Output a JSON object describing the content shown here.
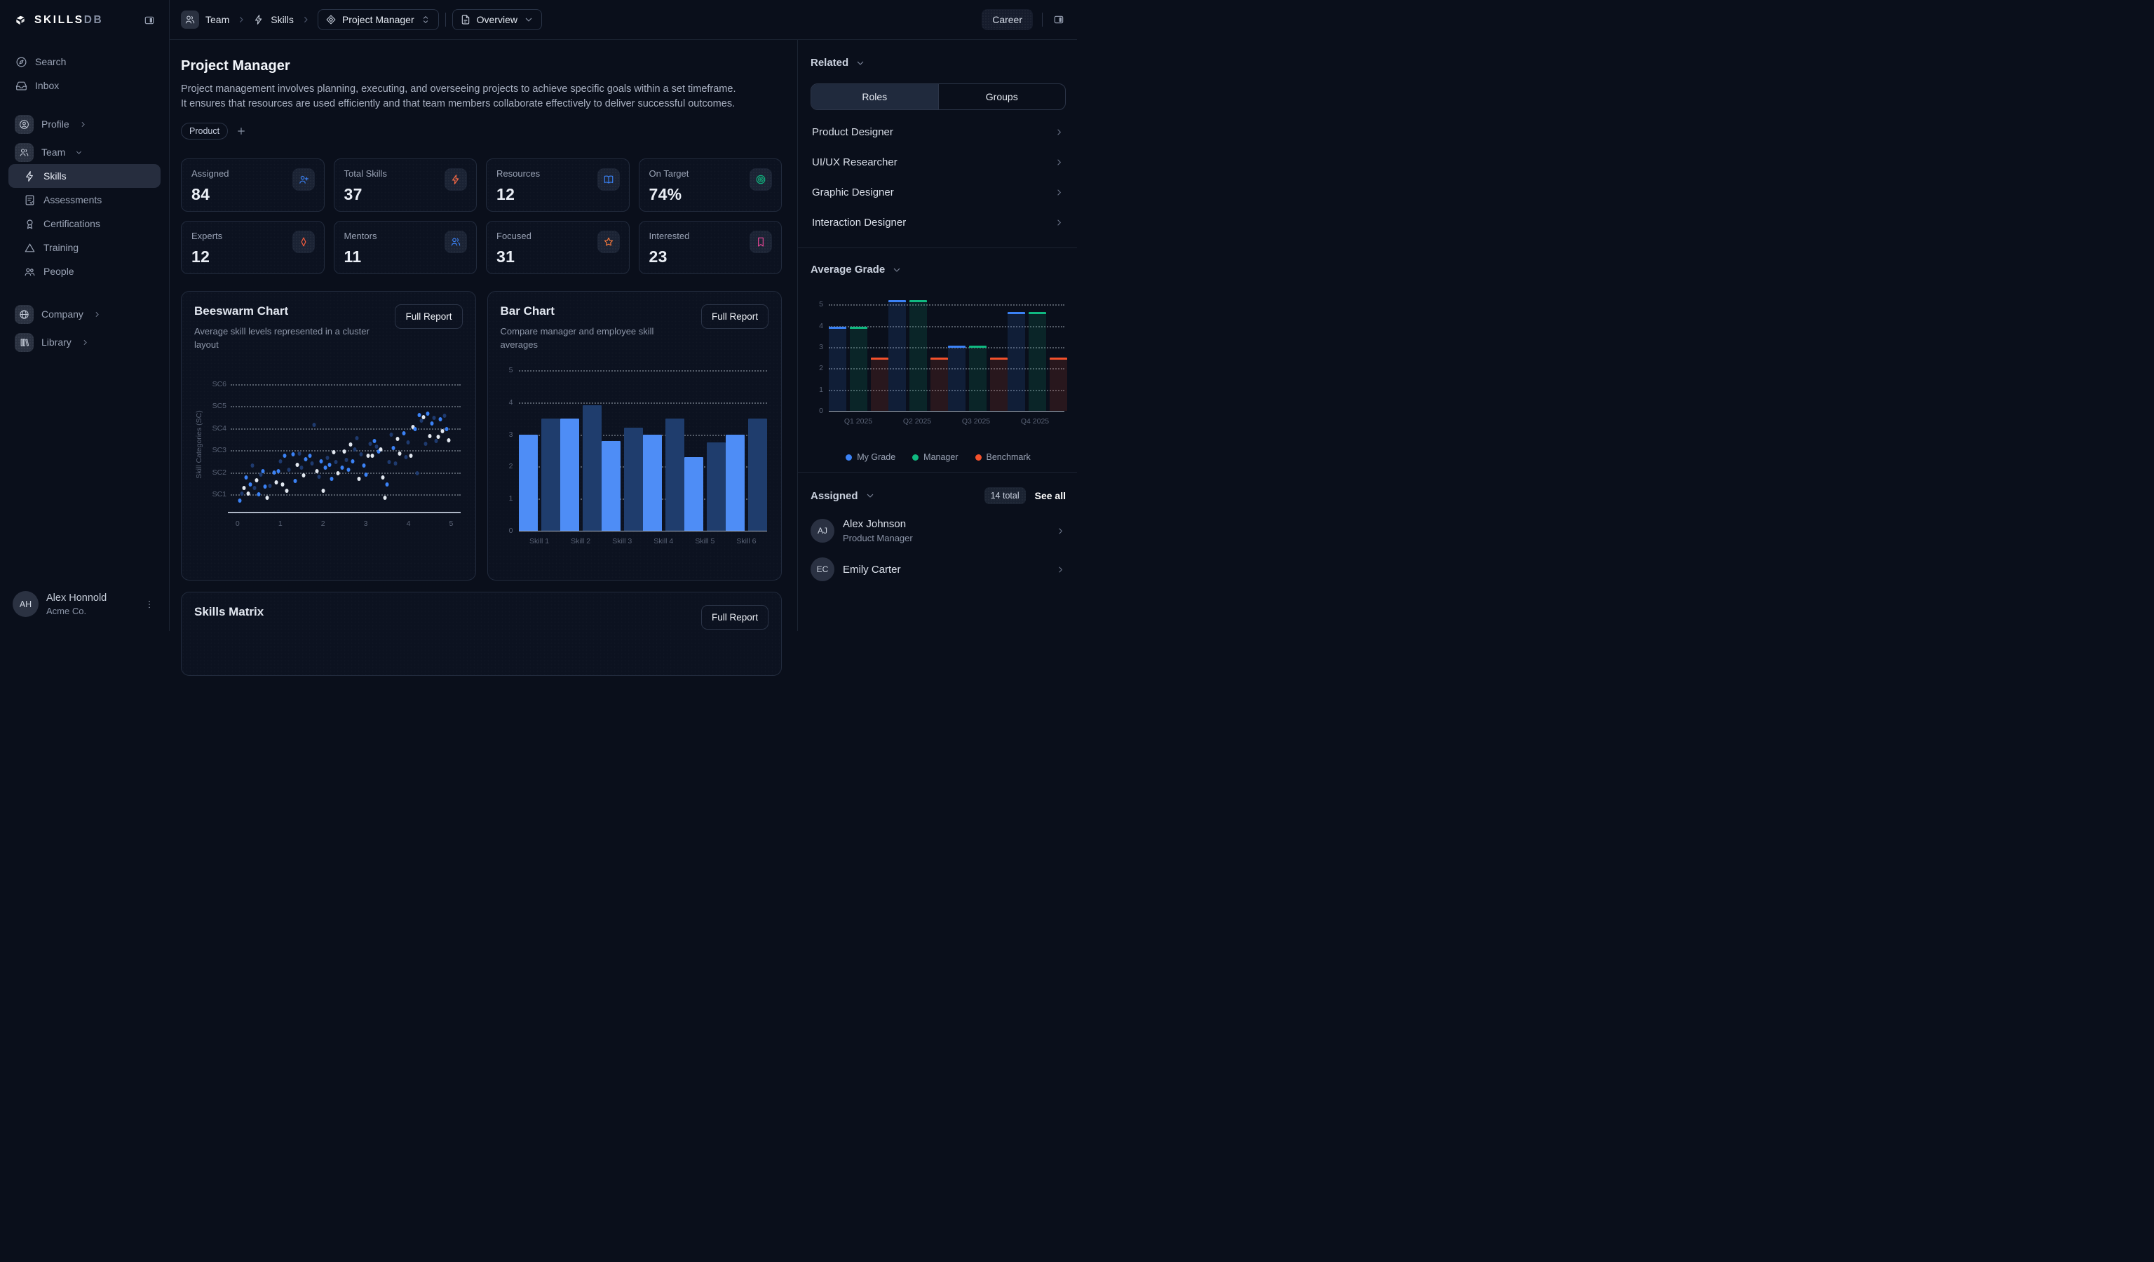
{
  "app": {
    "brand": "SKILLS",
    "brand_suffix": "DB"
  },
  "topbar": {
    "breadcrumb": [
      {
        "label": "Team",
        "icon": "team"
      },
      {
        "label": "Skills",
        "icon": "skills"
      }
    ],
    "role_select": {
      "label": "Project Manager",
      "icon": "role-diamond"
    },
    "view_select": {
      "label": "Overview",
      "icon": "file"
    },
    "career_label": "Career"
  },
  "sidebar": {
    "primary": [
      {
        "label": "Search",
        "icon": "search"
      },
      {
        "label": "Inbox",
        "icon": "inbox"
      }
    ],
    "groups": [
      {
        "label": "Profile",
        "icon": "profile",
        "chevron": "chevron-right",
        "children": []
      },
      {
        "label": "Team",
        "icon": "team",
        "chevron": "chevron-down",
        "children": [
          {
            "label": "Skills",
            "icon": "skills",
            "active": true
          },
          {
            "label": "Assessments",
            "icon": "assessments"
          },
          {
            "label": "Certifications",
            "icon": "certifications"
          },
          {
            "label": "Training",
            "icon": "training"
          },
          {
            "label": "People",
            "icon": "people"
          }
        ]
      }
    ],
    "secondary": [
      {
        "label": "Company",
        "icon": "company",
        "chevron": "chevron-right"
      },
      {
        "label": "Library",
        "icon": "library",
        "chevron": "chevron-right"
      }
    ],
    "user": {
      "initials": "AH",
      "name": "Alex Honnold",
      "org": "Acme Co."
    }
  },
  "page": {
    "title": "Project Manager",
    "description": "Project management involves planning, executing, and overseeing projects to achieve specific goals within a set timeframe. It ensures that resources are used efficiently and that team members collaborate effectively to deliver successful outcomes.",
    "tag": "Product"
  },
  "stats": [
    {
      "label": "Assigned",
      "value": "84",
      "icon": "user-plus",
      "color": "#3b82f6"
    },
    {
      "label": "Total Skills",
      "value": "37",
      "icon": "bolt",
      "color": "#fb6a45"
    },
    {
      "label": "Resources",
      "value": "12",
      "icon": "book-open",
      "color": "#3b82f6"
    },
    {
      "label": "On Target",
      "value": "74%",
      "icon": "target",
      "color": "#10b981"
    },
    {
      "label": "Experts",
      "value": "12",
      "icon": "diamond",
      "color": "#fb5d3d"
    },
    {
      "label": "Mentors",
      "value": "11",
      "icon": "team",
      "color": "#3b82f6"
    },
    {
      "label": "Focused",
      "value": "31",
      "icon": "star",
      "color": "#fb7a3c"
    },
    {
      "label": "Interested",
      "value": "23",
      "icon": "bookmark",
      "color": "#ec4899"
    }
  ],
  "cards": {
    "beeswarm": {
      "title": "Beeswarm Chart",
      "subtitle": "Average skill levels represented in a cluster layout",
      "button": "Full Report"
    },
    "bar": {
      "title": "Bar Chart",
      "subtitle": "Compare manager and employee skill averages",
      "button": "Full Report"
    },
    "matrix": {
      "title": "Skills Matrix",
      "button": "Full Report"
    }
  },
  "right_panel": {
    "related_label": "Related",
    "tabs": [
      "Roles",
      "Groups"
    ],
    "active_tab": "Roles",
    "roles": [
      "Product Designer",
      "UI/UX Researcher",
      "Graphic Designer",
      "Interaction Designer"
    ],
    "average_grade_label": "Average Grade",
    "assigned": {
      "label": "Assigned",
      "total_badge": "14 total",
      "see_all": "See all",
      "people": [
        {
          "initials": "AJ",
          "name": "Alex Johnson",
          "role": "Product Manager"
        },
        {
          "initials": "EC",
          "name": "Emily Carter",
          "role": ""
        }
      ]
    }
  },
  "chart_data": [
    {
      "id": "beeswarm",
      "type": "scatter",
      "title": "Beeswarm Chart",
      "xlabel": "",
      "ylabel": "Skill Categories (SC)",
      "x_ticks": [
        0,
        1,
        2,
        3,
        4,
        5
      ],
      "y_categories": [
        "SC1",
        "SC2",
        "SC3",
        "SC4",
        "SC5",
        "SC6"
      ],
      "xlim": [
        0,
        5
      ],
      "ylim": [
        0.15,
        6.75
      ],
      "grid": "dotted-horizontal",
      "point_colors": [
        "#3b82f6",
        "#1e3a6e",
        "#e2e8f0"
      ],
      "points": [
        [
          0.05,
          0.72,
          0
        ],
        [
          0.1,
          1.05,
          1
        ],
        [
          0.15,
          1.3,
          2
        ],
        [
          0.2,
          1.75,
          0
        ],
        [
          0.25,
          1.05,
          2
        ],
        [
          0.3,
          1.45,
          0
        ],
        [
          0.35,
          2.3,
          1
        ],
        [
          0.4,
          1.3,
          1
        ],
        [
          0.45,
          1.65,
          2
        ],
        [
          0.5,
          1.0,
          0
        ],
        [
          0.55,
          1.9,
          1
        ],
        [
          0.6,
          2.05,
          0
        ],
        [
          0.65,
          1.35,
          0
        ],
        [
          0.7,
          0.85,
          2
        ],
        [
          0.75,
          1.4,
          1
        ],
        [
          0.85,
          2.0,
          0
        ],
        [
          0.9,
          1.55,
          2
        ],
        [
          0.95,
          2.05,
          0
        ],
        [
          1.0,
          2.5,
          1
        ],
        [
          1.05,
          1.45,
          2
        ],
        [
          1.1,
          2.75,
          0
        ],
        [
          1.15,
          1.15,
          2
        ],
        [
          1.2,
          2.1,
          1
        ],
        [
          1.3,
          2.8,
          0
        ],
        [
          1.35,
          1.6,
          0
        ],
        [
          1.4,
          2.35,
          2
        ],
        [
          1.45,
          2.85,
          1
        ],
        [
          1.5,
          2.2,
          1
        ],
        [
          1.55,
          1.85,
          2
        ],
        [
          1.6,
          2.6,
          0
        ],
        [
          1.7,
          2.75,
          0
        ],
        [
          1.75,
          2.4,
          1
        ],
        [
          1.8,
          4.15,
          1
        ],
        [
          1.85,
          2.05,
          2
        ],
        [
          1.9,
          1.8,
          1
        ],
        [
          1.95,
          2.5,
          0
        ],
        [
          2.0,
          1.15,
          2
        ],
        [
          2.05,
          2.2,
          0
        ],
        [
          2.1,
          2.65,
          1
        ],
        [
          2.15,
          2.35,
          0
        ],
        [
          2.2,
          1.7,
          0
        ],
        [
          2.25,
          2.9,
          2
        ],
        [
          2.3,
          2.45,
          1
        ],
        [
          2.35,
          1.95,
          2
        ],
        [
          2.45,
          2.2,
          0
        ],
        [
          2.5,
          2.95,
          2
        ],
        [
          2.55,
          2.55,
          1
        ],
        [
          2.6,
          2.1,
          0
        ],
        [
          2.65,
          3.25,
          2
        ],
        [
          2.7,
          2.5,
          0
        ],
        [
          2.75,
          3.05,
          1
        ],
        [
          2.8,
          3.55,
          1
        ],
        [
          2.85,
          1.7,
          2
        ],
        [
          2.9,
          2.8,
          1
        ],
        [
          2.95,
          2.3,
          0
        ],
        [
          3.0,
          1.9,
          0
        ],
        [
          3.05,
          2.75,
          2
        ],
        [
          3.1,
          3.3,
          1
        ],
        [
          3.15,
          2.75,
          2
        ],
        [
          3.2,
          3.4,
          0
        ],
        [
          3.25,
          3.15,
          1
        ],
        [
          3.3,
          2.95,
          0
        ],
        [
          3.35,
          3.05,
          2
        ],
        [
          3.4,
          1.75,
          2
        ],
        [
          3.45,
          0.85,
          2
        ],
        [
          3.5,
          1.45,
          0
        ],
        [
          3.55,
          2.45,
          1
        ],
        [
          3.6,
          3.7,
          1
        ],
        [
          3.65,
          3.1,
          0
        ],
        [
          3.7,
          2.4,
          1
        ],
        [
          3.75,
          3.5,
          2
        ],
        [
          3.8,
          2.85,
          2
        ],
        [
          3.9,
          3.75,
          0
        ],
        [
          3.95,
          2.7,
          1
        ],
        [
          4.0,
          3.35,
          1
        ],
        [
          4.05,
          2.75,
          2
        ],
        [
          4.1,
          4.05,
          2
        ],
        [
          4.15,
          3.95,
          0
        ],
        [
          4.2,
          1.95,
          1
        ],
        [
          4.25,
          4.6,
          0
        ],
        [
          4.3,
          4.35,
          1
        ],
        [
          4.35,
          4.5,
          2
        ],
        [
          4.4,
          3.3,
          1
        ],
        [
          4.45,
          4.65,
          0
        ],
        [
          4.5,
          3.65,
          2
        ],
        [
          4.55,
          4.2,
          0
        ],
        [
          4.6,
          4.45,
          1
        ],
        [
          4.65,
          3.4,
          1
        ],
        [
          4.7,
          3.6,
          2
        ],
        [
          4.75,
          4.4,
          0
        ],
        [
          4.8,
          3.85,
          2
        ],
        [
          4.85,
          4.55,
          1
        ],
        [
          4.9,
          3.95,
          0
        ],
        [
          4.95,
          3.45,
          2
        ]
      ]
    },
    {
      "id": "skill-bars",
      "type": "bar",
      "title": "Bar Chart",
      "categories": [
        "Skill 1",
        "Skill 2",
        "Skill 3",
        "Skill 4",
        "Skill 5",
        "Skill 6"
      ],
      "series": [
        {
          "name": "employee",
          "color": "#4e8df6",
          "values": [
            3.0,
            3.5,
            2.8,
            3.0,
            2.3,
            3.0
          ]
        },
        {
          "name": "manager",
          "color": "#1f3d6d",
          "values": [
            3.5,
            3.9,
            3.2,
            3.5,
            2.75,
            3.5
          ]
        }
      ],
      "ylim": [
        0,
        5
      ],
      "yticks": [
        0,
        1,
        2,
        3,
        4,
        5
      ],
      "grid": "dotted-horizontal",
      "legend_position": "none"
    },
    {
      "id": "average-grade",
      "type": "bar",
      "title": "Average Grade",
      "categories": [
        "Q1 2025",
        "Q2 2025",
        "Q3 2025",
        "Q4 2025"
      ],
      "series": [
        {
          "name": "My Grade",
          "color": "#3b82f6",
          "values": [
            3.95,
            5.2,
            3.05,
            4.65
          ]
        },
        {
          "name": "Manager",
          "color": "#10b981",
          "values": [
            3.95,
            5.2,
            3.05,
            4.65
          ]
        },
        {
          "name": "Benchmark",
          "color": "#f4512c",
          "values": [
            2.5,
            2.5,
            2.5,
            2.5
          ]
        }
      ],
      "ylim": [
        0,
        5.5
      ],
      "yticks": [
        0,
        1,
        2,
        3,
        4,
        5
      ],
      "grid": "dotted-horizontal",
      "legend_position": "bottom",
      "bar_style": "translucent-body-colored-top"
    }
  ]
}
